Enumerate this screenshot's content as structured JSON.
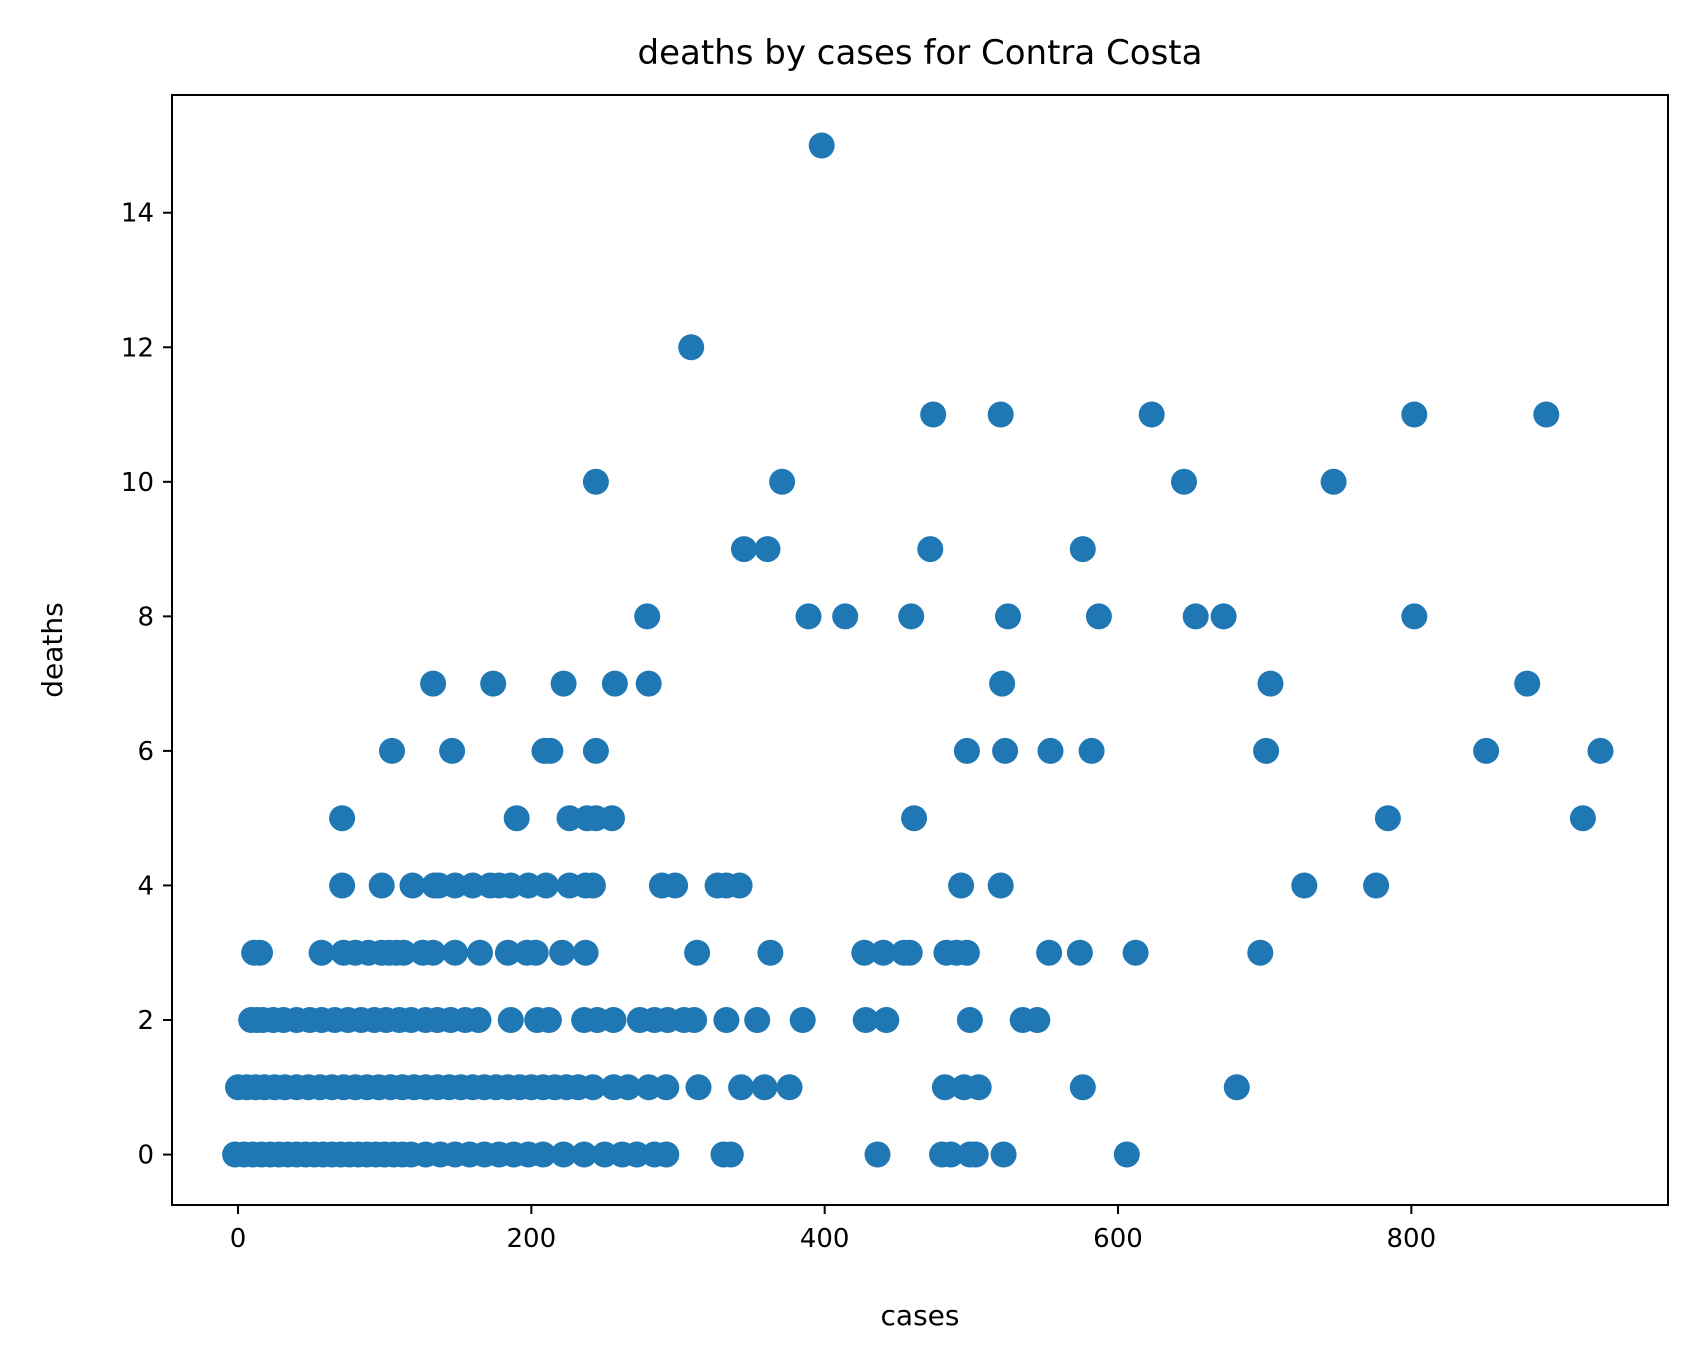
{
  "chart_data": {
    "type": "scatter",
    "title": "deaths by cases for Contra Costa",
    "xlabel": "cases",
    "ylabel": "deaths",
    "xlim": [
      -45,
      975
    ],
    "ylim": [
      -0.75,
      15.75
    ],
    "xticks": [
      0,
      200,
      400,
      600,
      800
    ],
    "yticks": [
      0,
      2,
      4,
      6,
      8,
      10,
      12,
      14
    ],
    "grid": false,
    "marker_color": "#1f77b4",
    "points": [
      [
        398,
        15
      ],
      [
        309,
        12
      ],
      [
        474,
        11
      ],
      [
        520,
        11
      ],
      [
        623,
        11
      ],
      [
        802,
        11
      ],
      [
        892,
        11
      ],
      [
        244,
        10
      ],
      [
        371,
        10
      ],
      [
        645,
        10
      ],
      [
        747,
        10
      ],
      [
        345,
        9
      ],
      [
        361,
        9
      ],
      [
        472,
        9
      ],
      [
        576,
        9
      ],
      [
        279,
        8
      ],
      [
        389,
        8
      ],
      [
        414,
        8
      ],
      [
        459,
        8
      ],
      [
        525,
        8
      ],
      [
        587,
        8
      ],
      [
        653,
        8
      ],
      [
        672,
        8
      ],
      [
        802,
        8
      ],
      [
        133,
        7
      ],
      [
        174,
        7
      ],
      [
        222,
        7
      ],
      [
        257,
        7
      ],
      [
        280,
        7
      ],
      [
        521,
        7
      ],
      [
        704,
        7
      ],
      [
        879,
        7
      ],
      [
        105,
        6
      ],
      [
        146,
        6
      ],
      [
        209,
        6
      ],
      [
        213,
        6
      ],
      [
        244,
        6
      ],
      [
        497,
        6
      ],
      [
        523,
        6
      ],
      [
        554,
        6
      ],
      [
        582,
        6
      ],
      [
        701,
        6
      ],
      [
        851,
        6
      ],
      [
        929,
        6
      ],
      [
        71,
        5
      ],
      [
        190,
        5
      ],
      [
        226,
        5
      ],
      [
        238,
        5
      ],
      [
        244,
        5
      ],
      [
        255,
        5
      ],
      [
        461,
        5
      ],
      [
        784,
        5
      ],
      [
        917,
        5
      ],
      [
        71,
        4
      ],
      [
        98,
        4
      ],
      [
        119,
        4
      ],
      [
        134,
        4
      ],
      [
        137,
        4
      ],
      [
        148,
        4
      ],
      [
        160,
        4
      ],
      [
        172,
        4
      ],
      [
        178,
        4
      ],
      [
        186,
        4
      ],
      [
        198,
        4
      ],
      [
        210,
        4
      ],
      [
        226,
        4
      ],
      [
        237,
        4
      ],
      [
        242,
        4
      ],
      [
        289,
        4
      ],
      [
        298,
        4
      ],
      [
        327,
        4
      ],
      [
        333,
        4
      ],
      [
        342,
        4
      ],
      [
        493,
        4
      ],
      [
        520,
        4
      ],
      [
        727,
        4
      ],
      [
        776,
        4
      ],
      [
        11,
        3
      ],
      [
        15,
        3
      ],
      [
        57,
        3
      ],
      [
        72,
        3
      ],
      [
        80,
        3
      ],
      [
        89,
        3
      ],
      [
        98,
        3
      ],
      [
        103,
        3
      ],
      [
        108,
        3
      ],
      [
        113,
        3
      ],
      [
        126,
        3
      ],
      [
        133,
        3
      ],
      [
        148,
        3
      ],
      [
        165,
        3
      ],
      [
        184,
        3
      ],
      [
        197,
        3
      ],
      [
        203,
        3
      ],
      [
        221,
        3
      ],
      [
        237,
        3
      ],
      [
        313,
        3
      ],
      [
        363,
        3
      ],
      [
        427,
        3
      ],
      [
        440,
        3
      ],
      [
        454,
        3
      ],
      [
        458,
        3
      ],
      [
        483,
        3
      ],
      [
        490,
        3
      ],
      [
        497,
        3
      ],
      [
        553,
        3
      ],
      [
        574,
        3
      ],
      [
        612,
        3
      ],
      [
        697,
        3
      ],
      [
        9,
        2
      ],
      [
        13,
        2
      ],
      [
        17,
        2
      ],
      [
        24,
        2
      ],
      [
        31,
        2
      ],
      [
        40,
        2
      ],
      [
        49,
        2
      ],
      [
        57,
        2
      ],
      [
        66,
        2
      ],
      [
        75,
        2
      ],
      [
        84,
        2
      ],
      [
        93,
        2
      ],
      [
        101,
        2
      ],
      [
        110,
        2
      ],
      [
        118,
        2
      ],
      [
        128,
        2
      ],
      [
        136,
        2
      ],
      [
        145,
        2
      ],
      [
        155,
        2
      ],
      [
        164,
        2
      ],
      [
        186,
        2
      ],
      [
        204,
        2
      ],
      [
        212,
        2
      ],
      [
        236,
        2
      ],
      [
        245,
        2
      ],
      [
        256,
        2
      ],
      [
        274,
        2
      ],
      [
        284,
        2
      ],
      [
        293,
        2
      ],
      [
        304,
        2
      ],
      [
        311,
        2
      ],
      [
        333,
        2
      ],
      [
        354,
        2
      ],
      [
        385,
        2
      ],
      [
        428,
        2
      ],
      [
        442,
        2
      ],
      [
        499,
        2
      ],
      [
        535,
        2
      ],
      [
        545,
        2
      ],
      [
        0,
        1
      ],
      [
        6,
        1
      ],
      [
        12,
        1
      ],
      [
        18,
        1
      ],
      [
        25,
        1
      ],
      [
        32,
        1
      ],
      [
        40,
        1
      ],
      [
        48,
        1
      ],
      [
        56,
        1
      ],
      [
        64,
        1
      ],
      [
        72,
        1
      ],
      [
        80,
        1
      ],
      [
        88,
        1
      ],
      [
        96,
        1
      ],
      [
        104,
        1
      ],
      [
        112,
        1
      ],
      [
        120,
        1
      ],
      [
        128,
        1
      ],
      [
        136,
        1
      ],
      [
        144,
        1
      ],
      [
        152,
        1
      ],
      [
        160,
        1
      ],
      [
        168,
        1
      ],
      [
        176,
        1
      ],
      [
        184,
        1
      ],
      [
        192,
        1
      ],
      [
        200,
        1
      ],
      [
        208,
        1
      ],
      [
        216,
        1
      ],
      [
        224,
        1
      ],
      [
        232,
        1
      ],
      [
        242,
        1
      ],
      [
        256,
        1
      ],
      [
        266,
        1
      ],
      [
        280,
        1
      ],
      [
        292,
        1
      ],
      [
        314,
        1
      ],
      [
        343,
        1
      ],
      [
        359,
        1
      ],
      [
        376,
        1
      ],
      [
        482,
        1
      ],
      [
        495,
        1
      ],
      [
        505,
        1
      ],
      [
        576,
        1
      ],
      [
        681,
        1
      ],
      [
        -2,
        0
      ],
      [
        4,
        0
      ],
      [
        10,
        0
      ],
      [
        16,
        0
      ],
      [
        22,
        0
      ],
      [
        28,
        0
      ],
      [
        34,
        0
      ],
      [
        40,
        0
      ],
      [
        46,
        0
      ],
      [
        52,
        0
      ],
      [
        58,
        0
      ],
      [
        64,
        0
      ],
      [
        70,
        0
      ],
      [
        76,
        0
      ],
      [
        82,
        0
      ],
      [
        88,
        0
      ],
      [
        94,
        0
      ],
      [
        100,
        0
      ],
      [
        106,
        0
      ],
      [
        112,
        0
      ],
      [
        118,
        0
      ],
      [
        128,
        0
      ],
      [
        138,
        0
      ],
      [
        148,
        0
      ],
      [
        158,
        0
      ],
      [
        168,
        0
      ],
      [
        178,
        0
      ],
      [
        188,
        0
      ],
      [
        198,
        0
      ],
      [
        208,
        0
      ],
      [
        222,
        0
      ],
      [
        236,
        0
      ],
      [
        250,
        0
      ],
      [
        262,
        0
      ],
      [
        272,
        0
      ],
      [
        284,
        0
      ],
      [
        292,
        0
      ],
      [
        331,
        0
      ],
      [
        336,
        0
      ],
      [
        436,
        0
      ],
      [
        480,
        0
      ],
      [
        486,
        0
      ],
      [
        499,
        0
      ],
      [
        503,
        0
      ],
      [
        522,
        0
      ],
      [
        606,
        0
      ]
    ]
  }
}
